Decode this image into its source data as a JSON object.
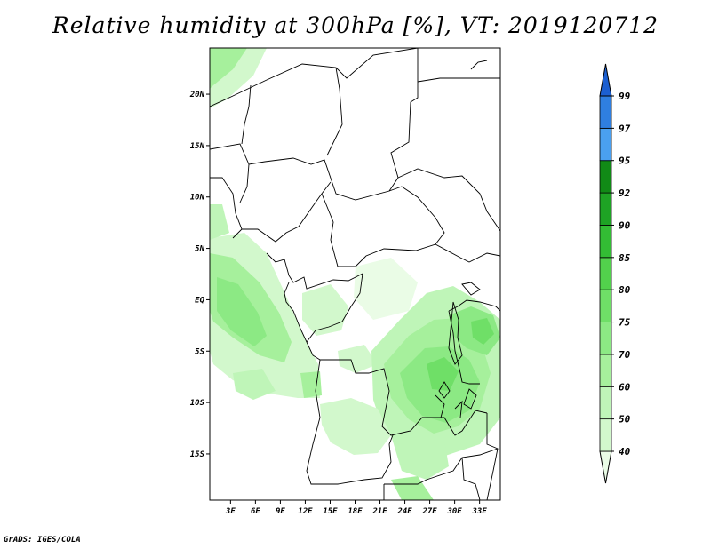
{
  "title": "Relative humidity at 300hPa [%], VT: 2019120712",
  "credit": "GrADS: IGES/COLA",
  "map": {
    "variable": "Relative humidity",
    "level": "300hPa",
    "units": "%",
    "valid_time": "2019120712",
    "lat_labels": [
      "20N",
      "15N",
      "10N",
      "5N",
      "EQ",
      "5S",
      "10S",
      "15S"
    ],
    "lat_values": [
      20,
      15,
      10,
      5,
      0,
      -5,
      -10,
      -15
    ],
    "lon_labels": [
      "3E",
      "6E",
      "9E",
      "12E",
      "15E",
      "18E",
      "21E",
      "24E",
      "27E",
      "30E",
      "33E"
    ],
    "lon_values": [
      3,
      6,
      9,
      12,
      15,
      18,
      21,
      24,
      27,
      30,
      33
    ],
    "lat_range": [
      -19.5,
      24.5
    ],
    "lon_range": [
      0.5,
      35.5
    ]
  },
  "colorbar": {
    "levels": [
      "40",
      "50",
      "60",
      "70",
      "75",
      "80",
      "85",
      "90",
      "92",
      "95",
      "97",
      "99"
    ],
    "colors": [
      "#eafce6",
      "#d2f8cc",
      "#bff5b8",
      "#a6f09c",
      "#8ce984",
      "#6fdf67",
      "#52d14c",
      "#33bd34",
      "#1ea324",
      "#118a16",
      "#4aa0f0",
      "#2f7fe0",
      "#1c5fd0"
    ]
  },
  "colors": {
    "land_background": "#ffffff",
    "border_line": "#000000"
  }
}
